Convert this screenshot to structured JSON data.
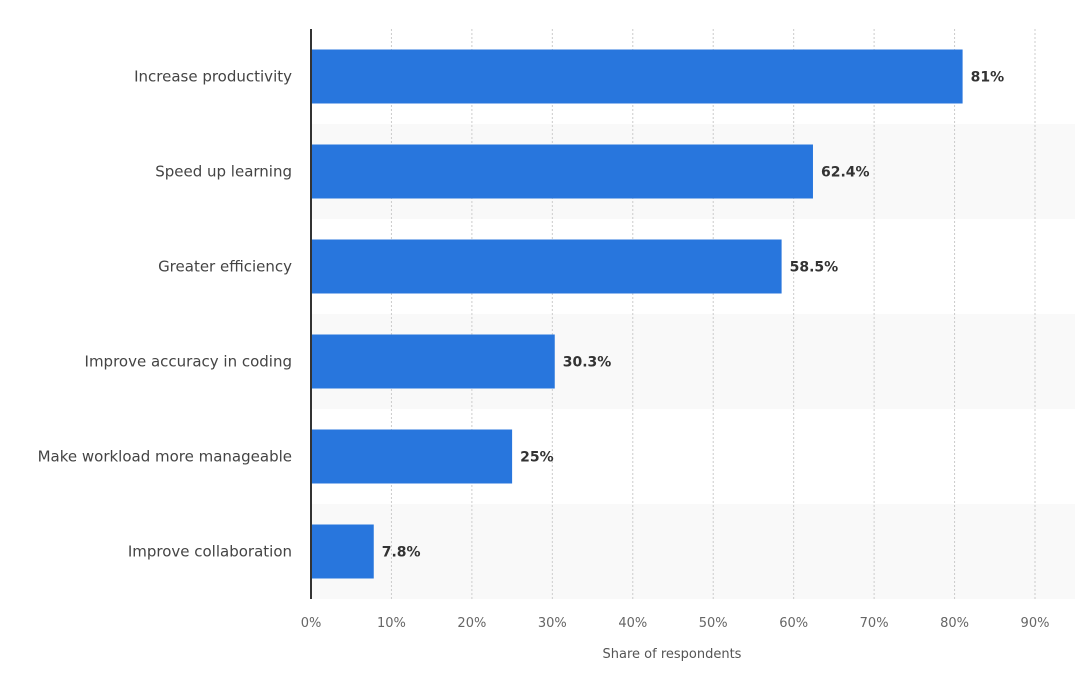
{
  "chart_data": {
    "type": "bar",
    "orientation": "horizontal",
    "title": "",
    "xlabel": "Share of respondents",
    "ylabel": "",
    "categories": [
      "Increase productivity",
      "Speed up learning",
      "Greater efficiency",
      "Improve accuracy in coding",
      "Make workload more manageable",
      "Improve collaboration"
    ],
    "values": [
      81,
      62.4,
      58.5,
      30.3,
      25,
      7.8
    ],
    "value_labels": [
      "81%",
      "62.4%",
      "58.5%",
      "30.3%",
      "25%",
      "7.8%"
    ],
    "xlim": [
      0,
      90
    ],
    "ticks": [
      0,
      10,
      20,
      30,
      40,
      50,
      60,
      70,
      80,
      90
    ],
    "tick_labels": [
      "0%",
      "10%",
      "20%",
      "30%",
      "40%",
      "50%",
      "60%",
      "70%",
      "80%",
      "90%"
    ],
    "grid": true,
    "colors": {
      "bar": "#2876dd",
      "stripe": "#f9f9f9",
      "grid": "#cccccc",
      "axis": "#333333"
    }
  }
}
